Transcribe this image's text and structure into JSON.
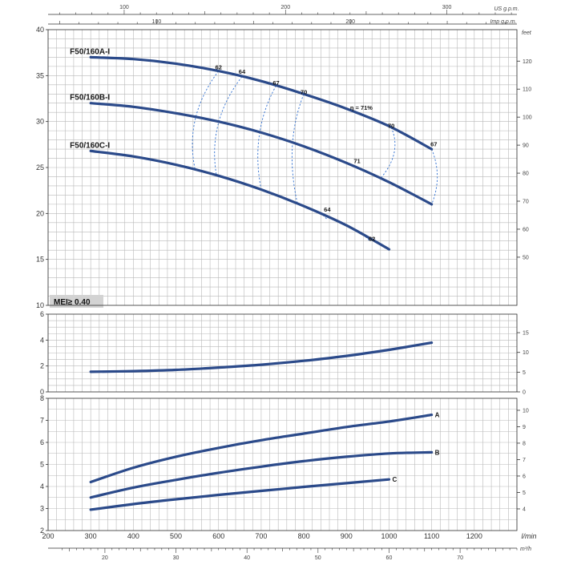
{
  "chart_data": {
    "type": "line",
    "x_axis": {
      "unit": "l/min",
      "range": [
        200,
        1300
      ],
      "ticks": [
        "200",
        "300",
        "400",
        "500",
        "600",
        "700",
        "800",
        "900",
        "1000",
        "1100",
        "1200"
      ],
      "bottom_unit": "m³/h",
      "bottom_ticks": [
        "20",
        "30",
        "40",
        "50",
        "60",
        "70"
      ],
      "top_us_unit": "US g.p.m.",
      "top_us_ticks": [
        "100",
        "200",
        "300"
      ],
      "top_imp_unit": "Imp g.p.m.",
      "top_imp_ticks": [
        "100",
        "200"
      ]
    },
    "panels": [
      {
        "name": "head",
        "y_range": [
          10,
          40
        ],
        "y_ticks": [
          "10",
          "15",
          "20",
          "25",
          "30",
          "35",
          "40"
        ],
        "right_unit": "feet",
        "right_ticks": [
          "50",
          "60",
          "70",
          "80",
          "90",
          "100",
          "110",
          "120"
        ],
        "badge": "MEI≥ 0.40",
        "series": [
          {
            "name": "F50/160A-I",
            "x": [
              300,
              400,
              500,
              600,
              700,
              800,
              900,
              1000,
              1100
            ],
            "y": [
              37.0,
              36.8,
              36.3,
              35.5,
              34.4,
              33.0,
              31.4,
              29.5,
              27.0
            ]
          },
          {
            "name": "F50/160B-I",
            "x": [
              300,
              400,
              500,
              600,
              700,
              800,
              900,
              1000,
              1100
            ],
            "y": [
              32.0,
              31.6,
              30.9,
              30.0,
              28.8,
              27.3,
              25.5,
              23.4,
              21.0
            ]
          },
          {
            "name": "F50/160C-I",
            "x": [
              300,
              400,
              500,
              600,
              700,
              800,
              900,
              1000
            ],
            "y": [
              26.8,
              26.2,
              25.3,
              24.1,
              22.6,
              20.8,
              18.7,
              16.1
            ]
          }
        ],
        "efficiency_labels": [
          {
            "text": "62",
            "x": 600,
            "y": 35.7
          },
          {
            "text": "64",
            "x": 655,
            "y": 35.2
          },
          {
            "text": "67",
            "x": 735,
            "y": 34.0
          },
          {
            "text": "70",
            "x": 800,
            "y": 33.0
          },
          {
            "text": "η = 71%",
            "x": 935,
            "y": 31.3
          },
          {
            "text": "70",
            "x": 1005,
            "y": 29.3
          },
          {
            "text": "67",
            "x": 1105,
            "y": 27.3
          },
          {
            "text": "71",
            "x": 925,
            "y": 25.5
          },
          {
            "text": "64",
            "x": 855,
            "y": 20.2
          },
          {
            "text": "62",
            "x": 960,
            "y": 17.0
          }
        ]
      },
      {
        "name": "npsh",
        "y_range": [
          0,
          6
        ],
        "y_ticks": [
          "0",
          "2",
          "4",
          "6"
        ],
        "right_ticks": [
          "0",
          "5",
          "10",
          "15"
        ],
        "series": [
          {
            "name": "",
            "x": [
              300,
              400,
              500,
              600,
              700,
              800,
              900,
              1000,
              1100
            ],
            "y": [
              1.55,
              1.6,
              1.7,
              1.88,
              2.1,
              2.4,
              2.78,
              3.25,
              3.8
            ]
          }
        ]
      },
      {
        "name": "power",
        "y_range": [
          2,
          8
        ],
        "y_ticks": [
          "2",
          "3",
          "4",
          "5",
          "6",
          "7",
          "8"
        ],
        "right_ticks": [
          "4",
          "5",
          "6",
          "7",
          "8",
          "9",
          "10"
        ],
        "series": [
          {
            "name": "A",
            "x": [
              300,
              400,
              500,
              600,
              700,
              800,
              900,
              1000,
              1100
            ],
            "y": [
              4.2,
              4.85,
              5.35,
              5.75,
              6.1,
              6.4,
              6.7,
              6.95,
              7.25
            ]
          },
          {
            "name": "B",
            "x": [
              300,
              400,
              500,
              600,
              700,
              800,
              900,
              1000,
              1100
            ],
            "y": [
              3.5,
              3.95,
              4.3,
              4.62,
              4.9,
              5.15,
              5.35,
              5.5,
              5.55
            ]
          },
          {
            "name": "C",
            "x": [
              300,
              400,
              500,
              600,
              700,
              800,
              900,
              1000
            ],
            "y": [
              2.95,
              3.2,
              3.42,
              3.62,
              3.8,
              3.98,
              4.15,
              4.32
            ]
          }
        ]
      }
    ]
  }
}
